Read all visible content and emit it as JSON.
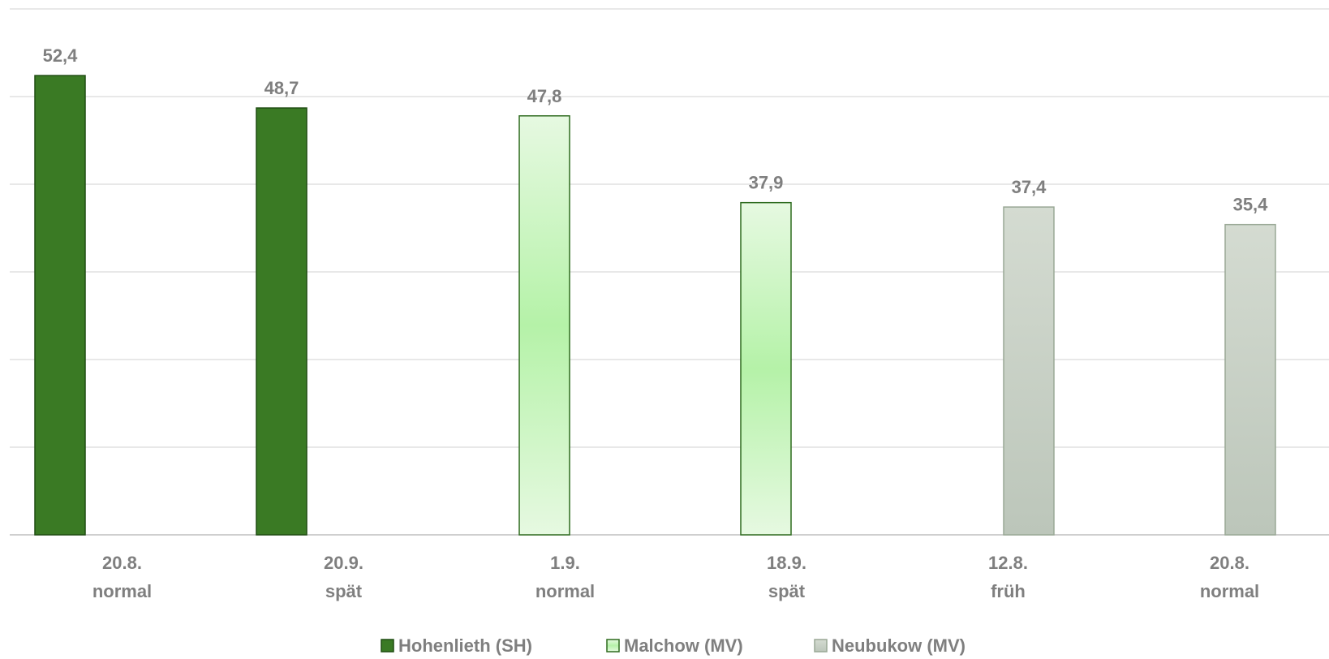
{
  "chart_data": {
    "type": "bar",
    "categories": [
      {
        "date": "20.8.",
        "timing": "normal"
      },
      {
        "date": "20.9.",
        "timing": "spät"
      },
      {
        "date": "1.9.",
        "timing": "normal"
      },
      {
        "date": "18.9.",
        "timing": "spät"
      },
      {
        "date": "12.8.",
        "timing": "früh"
      },
      {
        "date": "20.8.",
        "timing": "normal"
      }
    ],
    "values": [
      52.4,
      48.7,
      47.8,
      37.9,
      37.4,
      35.4
    ],
    "value_labels": [
      "52,4",
      "48,7",
      "47,8",
      "37,9",
      "37,4",
      "35,4"
    ],
    "series_index": [
      0,
      0,
      1,
      1,
      2,
      2
    ],
    "series": [
      {
        "name": "Hohenlieth (SH)",
        "color": "#3a7a24",
        "border": "#1f4d12",
        "style": "solid"
      },
      {
        "name": "Malchow (MV)",
        "color": "#b5f2a8",
        "border": "#2e6b1e",
        "style": "gradient-green"
      },
      {
        "name": "Neubukow (MV)",
        "color": "#c9d0c6",
        "border": "#9aa896",
        "style": "gradient-gray"
      }
    ],
    "ylim": [
      0,
      60
    ],
    "grid": true,
    "legend_position": "bottom-center"
  }
}
